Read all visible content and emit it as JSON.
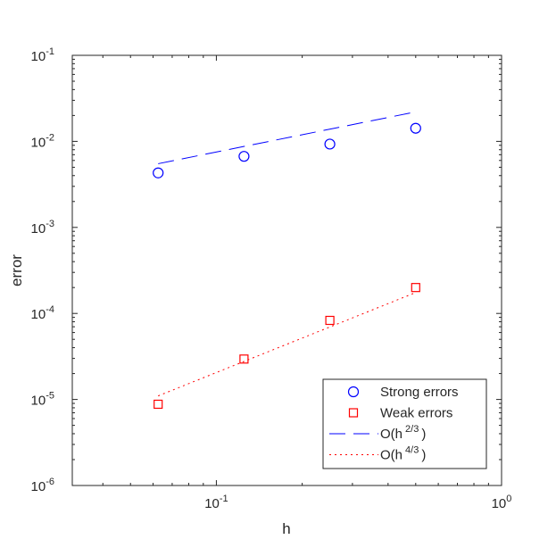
{
  "chart_data": {
    "type": "scatter",
    "xlabel": "h",
    "ylabel": "error",
    "xscale": "log",
    "yscale": "log",
    "xlim": [
      0.03125,
      1
    ],
    "ylim": [
      1e-06,
      0.1
    ],
    "grid": false,
    "legend_position": "bottom-right",
    "x_ticks": [
      {
        "value": 0.1,
        "base": "10",
        "exp": "-1"
      },
      {
        "value": 1,
        "base": "10",
        "exp": "0"
      }
    ],
    "y_ticks": [
      {
        "value": 1e-06,
        "base": "10",
        "exp": "-6"
      },
      {
        "value": 1e-05,
        "base": "10",
        "exp": "-5"
      },
      {
        "value": 0.0001,
        "base": "10",
        "exp": "-4"
      },
      {
        "value": 0.001,
        "base": "10",
        "exp": "-3"
      },
      {
        "value": 0.01,
        "base": "10",
        "exp": "-2"
      },
      {
        "value": 0.1,
        "base": "10",
        "exp": "-1"
      }
    ],
    "series": [
      {
        "name": "Strong errors",
        "kind": "markers",
        "marker": "circle",
        "color": "#0000ff",
        "x": [
          0.0625,
          0.125,
          0.25,
          0.5
        ],
        "y": [
          0.0043,
          0.0067,
          0.0093,
          0.0142
        ]
      },
      {
        "name": "Weak errors",
        "kind": "markers",
        "marker": "square",
        "color": "#ff0000",
        "x": [
          0.0625,
          0.125,
          0.25,
          0.5
        ],
        "y": [
          8.8e-06,
          2.95e-05,
          8.3e-05,
          0.0002
        ]
      },
      {
        "name": "O(h^{2/3})",
        "label_main": "O(h",
        "label_sup": "2/3",
        "label_end": ")",
        "kind": "line",
        "dash": "dashed",
        "color": "#0000ff",
        "x": [
          0.0625,
          0.5
        ],
        "y": [
          0.0055,
          0.022
        ]
      },
      {
        "name": "O(h^{4/3})",
        "label_main": "O(h",
        "label_sup": "4/3",
        "label_end": ")",
        "kind": "line",
        "dash": "dotted",
        "color": "#ff0000",
        "x": [
          0.0625,
          0.5
        ],
        "y": [
          1.1e-05,
          0.000175
        ]
      }
    ]
  }
}
